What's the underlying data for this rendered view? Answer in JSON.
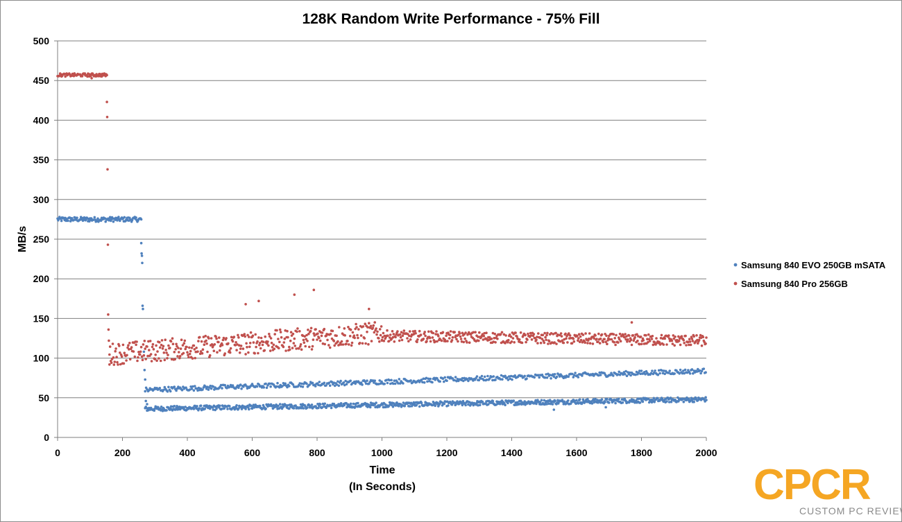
{
  "chart_data": {
    "type": "scatter",
    "title": "128K Random Write Performance - 75% Fill",
    "xlabel": "Time",
    "xlabel_sub": "(In Seconds)",
    "ylabel": "MB/s",
    "xlim": [
      0,
      2000
    ],
    "ylim": [
      0,
      500
    ],
    "xticks": [
      0,
      200,
      400,
      600,
      800,
      1000,
      1200,
      1400,
      1600,
      1800,
      2000
    ],
    "yticks": [
      0,
      50,
      100,
      150,
      200,
      250,
      300,
      350,
      400,
      450,
      500
    ],
    "grid": "horizontal",
    "legend_position": "right",
    "series": [
      {
        "name": "Samsung 840 EVO 250GB mSATA",
        "color": "#4f81bd",
        "segments": [
          {
            "x_range": [
              0,
              258
            ],
            "y": 275,
            "jitter": 3,
            "step": 2
          },
          {
            "x_range": [
              270,
              2000
            ],
            "y_start": 36,
            "y_end": 48,
            "jitter": 3,
            "step": 2
          },
          {
            "x_range": [
              270,
              2000
            ],
            "y_start": 60,
            "y_end": 84,
            "jitter": 3,
            "step": 3
          }
        ],
        "points": [
          [
            258,
            245
          ],
          [
            259,
            232
          ],
          [
            260,
            229
          ],
          [
            261,
            220
          ],
          [
            262,
            166
          ],
          [
            263,
            162
          ],
          [
            266,
            108
          ],
          [
            268,
            85
          ],
          [
            270,
            73
          ],
          [
            272,
            46
          ],
          [
            276,
            42
          ],
          [
            1530,
            35
          ],
          [
            1690,
            38
          ]
        ]
      },
      {
        "name": "Samsung 840 Pro 256GB",
        "color": "#c0504d",
        "segments": [
          {
            "x_range": [
              0,
              152
            ],
            "y": 457,
            "jitter": 2,
            "step": 2
          },
          {
            "x_range": [
              160,
              1000
            ],
            "y_start": 105,
            "y_end": 132,
            "jitter": 14,
            "step": 2
          },
          {
            "x_range": [
              1000,
              2000
            ],
            "y_start": 128,
            "y_end": 122,
            "jitter": 7,
            "step": 2
          }
        ],
        "points": [
          [
            105,
            453
          ],
          [
            152,
            423
          ],
          [
            153,
            404
          ],
          [
            154,
            338
          ],
          [
            155,
            243
          ],
          [
            156,
            155
          ],
          [
            157,
            136
          ],
          [
            158,
            122
          ],
          [
            160,
            92
          ],
          [
            580,
            168
          ],
          [
            620,
            172
          ],
          [
            730,
            180
          ],
          [
            790,
            186
          ],
          [
            960,
            162
          ],
          [
            1770,
            145
          ]
        ]
      }
    ]
  },
  "logo": {
    "text": "CPCR",
    "subtitle": "CUSTOM PC REVIEW",
    "color": "#f5a623"
  }
}
